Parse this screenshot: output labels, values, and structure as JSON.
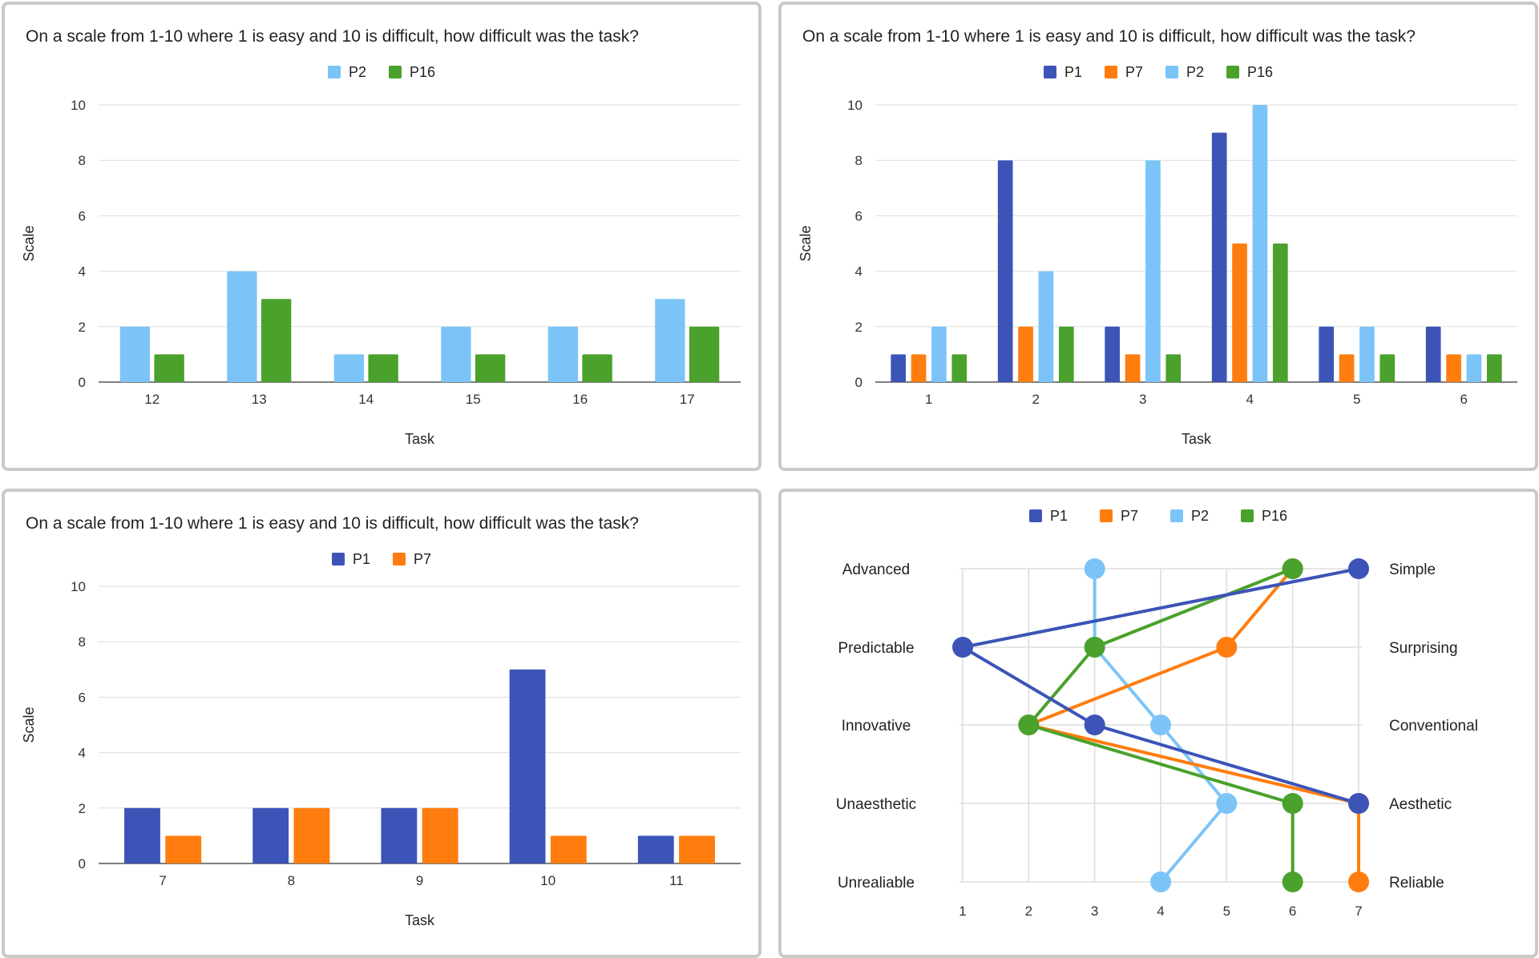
{
  "colors": {
    "P1": "#3c54b8",
    "P7": "#ff7d0f",
    "P2": "#7cc4f8",
    "P16": "#4aa12c",
    "grid": "#dedede",
    "border": "#c9c9c9"
  },
  "chart_data": [
    {
      "type": "bar",
      "title": "On a scale from 1-10 where 1 is easy and 10 is difficult, how difficult was the task?",
      "xlabel": "Task",
      "ylabel": "Scale",
      "ylim": [
        0,
        10
      ],
      "yticks": [
        0,
        2,
        4,
        6,
        8,
        10
      ],
      "grid": true,
      "legend_position": "top",
      "categories": [
        "12",
        "13",
        "14",
        "15",
        "16",
        "17"
      ],
      "series": [
        {
          "name": "P2",
          "color": "#7cc4f8",
          "values": [
            2,
            4,
            1,
            2,
            2,
            3
          ]
        },
        {
          "name": "P16",
          "color": "#4aa12c",
          "values": [
            1,
            3,
            1,
            1,
            1,
            2
          ]
        }
      ]
    },
    {
      "type": "bar",
      "title": "On a scale from 1-10 where 1 is easy and 10 is difficult, how difficult was the task?",
      "xlabel": "Task",
      "ylabel": "Scale",
      "ylim": [
        0,
        10
      ],
      "yticks": [
        0,
        2,
        4,
        6,
        8,
        10
      ],
      "grid": true,
      "legend_position": "top",
      "categories": [
        "1",
        "2",
        "3",
        "4",
        "5",
        "6"
      ],
      "series": [
        {
          "name": "P1",
          "color": "#3c54b8",
          "values": [
            1,
            8,
            2,
            9,
            2,
            2
          ]
        },
        {
          "name": "P7",
          "color": "#ff7d0f",
          "values": [
            1,
            2,
            1,
            5,
            1,
            1
          ]
        },
        {
          "name": "P2",
          "color": "#7cc4f8",
          "values": [
            2,
            4,
            8,
            10,
            2,
            1
          ]
        },
        {
          "name": "P16",
          "color": "#4aa12c",
          "values": [
            1,
            2,
            1,
            5,
            1,
            1
          ]
        }
      ]
    },
    {
      "type": "bar",
      "title": "On a scale from 1-10 where 1 is easy and 10 is difficult, how difficult was the task?",
      "xlabel": "Task",
      "ylabel": "Scale",
      "ylim": [
        0,
        10
      ],
      "yticks": [
        0,
        2,
        4,
        6,
        8,
        10
      ],
      "grid": true,
      "legend_position": "top",
      "categories": [
        "7",
        "8",
        "9",
        "10",
        "11"
      ],
      "series": [
        {
          "name": "P1",
          "color": "#3c54b8",
          "values": [
            2,
            2,
            2,
            7,
            1
          ]
        },
        {
          "name": "P7",
          "color": "#ff7d0f",
          "values": [
            1,
            2,
            2,
            1,
            1
          ]
        }
      ]
    },
    {
      "type": "line",
      "subtype": "semantic-differential",
      "grid": true,
      "legend_position": "top",
      "xticks": [
        1,
        2,
        3,
        4,
        5,
        6,
        7
      ],
      "xlim": [
        1,
        7
      ],
      "left_labels": [
        "Advanced",
        "Predictable",
        "Innovative",
        "Unaesthetic",
        "Unrealiable"
      ],
      "right_labels": [
        "Simple",
        "Surprising",
        "Conventional",
        "Aesthetic",
        "Reliable"
      ],
      "series": [
        {
          "name": "P1",
          "color": "#3c54b8",
          "values": [
            7,
            1,
            3,
            7,
            null
          ]
        },
        {
          "name": "P7",
          "color": "#ff7d0f",
          "values": [
            6,
            5,
            2,
            7,
            7
          ]
        },
        {
          "name": "P2",
          "color": "#7cc4f8",
          "values": [
            3,
            3,
            4,
            5,
            4
          ]
        },
        {
          "name": "P16",
          "color": "#4aa12c",
          "values": [
            6,
            3,
            2,
            6,
            6
          ]
        }
      ]
    }
  ]
}
